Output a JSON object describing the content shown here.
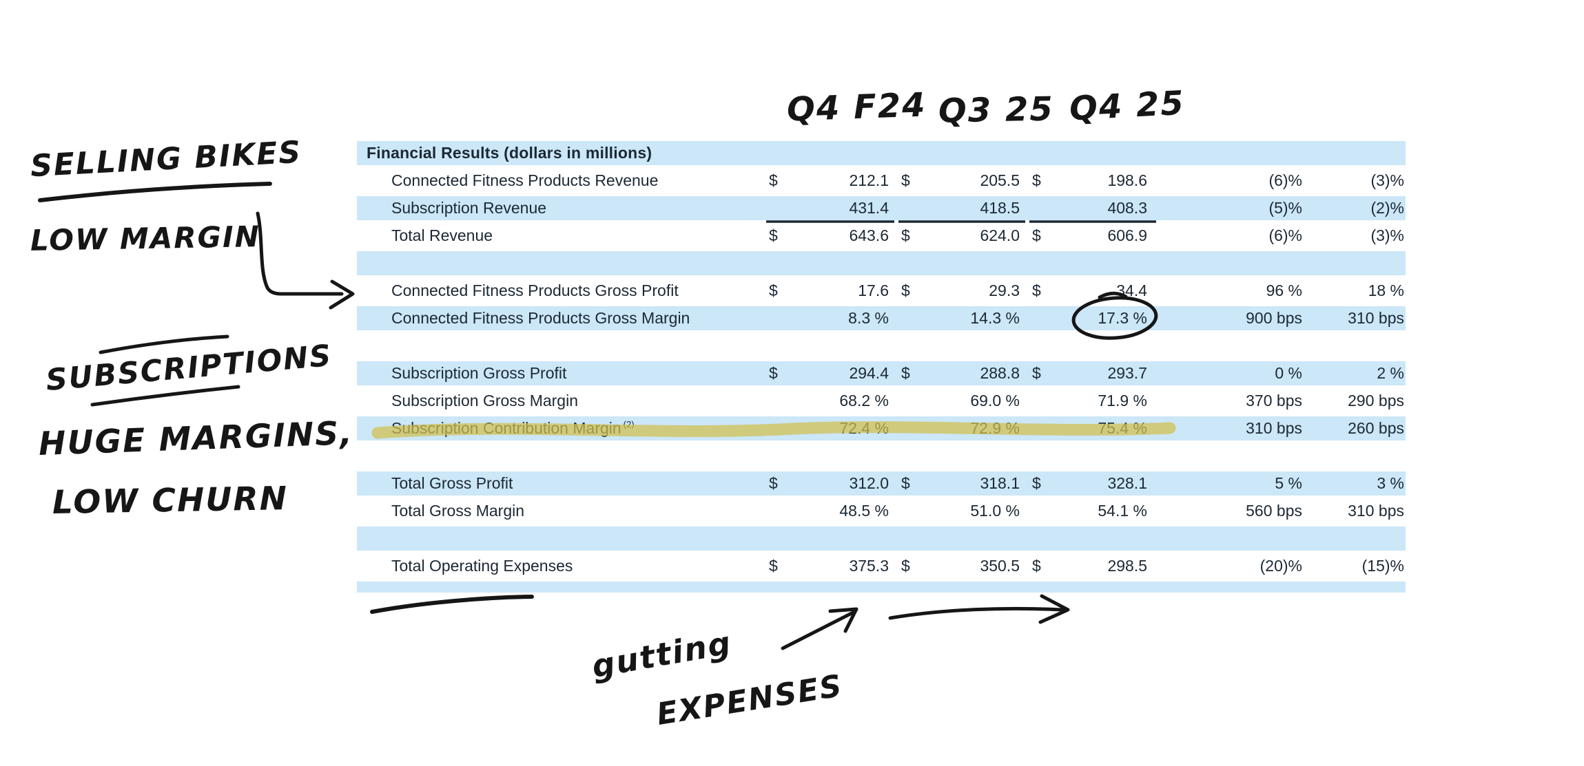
{
  "colors": {
    "row_band": "#cbe7f8",
    "table_text": "#1c2834",
    "handwriting_ink": "#161616",
    "highlight": "#d2c04c"
  },
  "table": {
    "header": "Financial Results (dollars in millions)",
    "rows": [
      {
        "type": "header",
        "label": "Financial Results (dollars in millions)"
      },
      {
        "type": "data",
        "label": "Connected Fitness Products Revenue",
        "d1": "$",
        "v1": "212.1",
        "d2": "$",
        "v2": "205.5",
        "d3": "$",
        "v3": "198.6",
        "yoy": "(6)%",
        "qoq": "(3)%"
      },
      {
        "type": "data",
        "label": "Subscription Revenue",
        "d1": "",
        "v1": "431.4",
        "d2": "",
        "v2": "418.5",
        "d3": "",
        "v3": "408.3",
        "yoy": "(5)%",
        "qoq": "(2)%"
      },
      {
        "type": "data",
        "label": "Total Revenue",
        "d1": "$",
        "v1": "643.6",
        "d2": "$",
        "v2": "624.0",
        "d3": "$",
        "v3": "606.9",
        "yoy": "(6)%",
        "qoq": "(3)%"
      },
      {
        "type": "spacer"
      },
      {
        "type": "data",
        "label": "Connected Fitness Products Gross Profit",
        "d1": "$",
        "v1": "17.6",
        "d2": "$",
        "v2": "29.3",
        "d3": "$",
        "v3": "34.4",
        "yoy": "96 %",
        "qoq": "18 %"
      },
      {
        "type": "data",
        "label": "Connected Fitness Products Gross Margin",
        "d1": "",
        "v1": "8.3 %",
        "d2": "",
        "v2": "14.3 %",
        "d3": "",
        "v3": "17.3 %",
        "yoy": "900 bps",
        "qoq": "310 bps"
      },
      {
        "type": "spacer"
      },
      {
        "type": "data",
        "label": "Subscription Gross Profit",
        "d1": "$",
        "v1": "294.4",
        "d2": "$",
        "v2": "288.8",
        "d3": "$",
        "v3": "293.7",
        "yoy": "0 %",
        "qoq": "2 %"
      },
      {
        "type": "data",
        "label": "Subscription Gross Margin",
        "d1": "",
        "v1": "68.2 %",
        "d2": "",
        "v2": "69.0 %",
        "d3": "",
        "v3": "71.9 %",
        "yoy": "370 bps",
        "qoq": "290 bps"
      },
      {
        "type": "data",
        "label": "Subscription Contribution Margin",
        "sup": "(2)",
        "d1": "",
        "v1": "72.4 %",
        "d2": "",
        "v2": "72.9 %",
        "d3": "",
        "v3": "75.4 %",
        "yoy": "310 bps",
        "qoq": "260 bps"
      },
      {
        "type": "spacer"
      },
      {
        "type": "data",
        "label": "Total Gross Profit",
        "d1": "$",
        "v1": "312.0",
        "d2": "$",
        "v2": "318.1",
        "d3": "$",
        "v3": "328.1",
        "yoy": "5 %",
        "qoq": "3 %"
      },
      {
        "type": "data",
        "label": "Total Gross Margin",
        "d1": "",
        "v1": "48.5 %",
        "d2": "",
        "v2": "51.0 %",
        "d3": "",
        "v3": "54.1 %",
        "yoy": "560 bps",
        "qoq": "310 bps"
      },
      {
        "type": "spacer"
      },
      {
        "type": "data",
        "label": "Total Operating Expenses",
        "d1": "$",
        "v1": "375.3",
        "d2": "$",
        "v2": "350.5",
        "d3": "$",
        "v3": "298.5",
        "yoy": "(20)%",
        "qoq": "(15)%"
      },
      {
        "type": "spacer",
        "short": true
      }
    ]
  },
  "annotations": {
    "col_headers": [
      "Q4 F24",
      "Q3 25",
      "Q4 25"
    ],
    "selling_bikes": "SELLING BIKES",
    "low_margin": "LOW MARGIN",
    "subscriptions": "SUBSCRIPTIONS",
    "huge_margins": "HUGE MARGINS,",
    "low_churn": "LOW CHURN",
    "gutting": "gutting",
    "expenses": "EXPENSES"
  }
}
